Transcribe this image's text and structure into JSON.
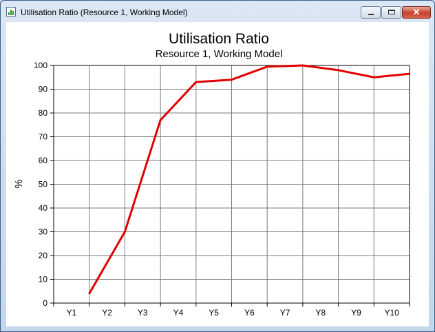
{
  "window": {
    "title": "Utilisation Ratio (Resource 1, Working Model)",
    "buttons": {
      "minimize": "minimize",
      "maximize": "maximize",
      "close": "✕"
    }
  },
  "chart_data": {
    "type": "line",
    "title": "Utilisation Ratio",
    "subtitle": "Resource 1, Working Model",
    "ylabel": "%",
    "xlabel": "",
    "categories": [
      "Y1",
      "Y2",
      "Y3",
      "Y4",
      "Y5",
      "Y6",
      "Y7",
      "Y8",
      "Y9",
      "Y10"
    ],
    "yticks": [
      0,
      10,
      20,
      30,
      40,
      50,
      60,
      70,
      80,
      90,
      100
    ],
    "ylim": [
      0,
      100
    ],
    "grid": true,
    "series": [
      {
        "color": "#e00000",
        "values": [
          4,
          30,
          77,
          93,
          94,
          99.5,
          100,
          98,
          95,
          96.5
        ]
      }
    ]
  }
}
